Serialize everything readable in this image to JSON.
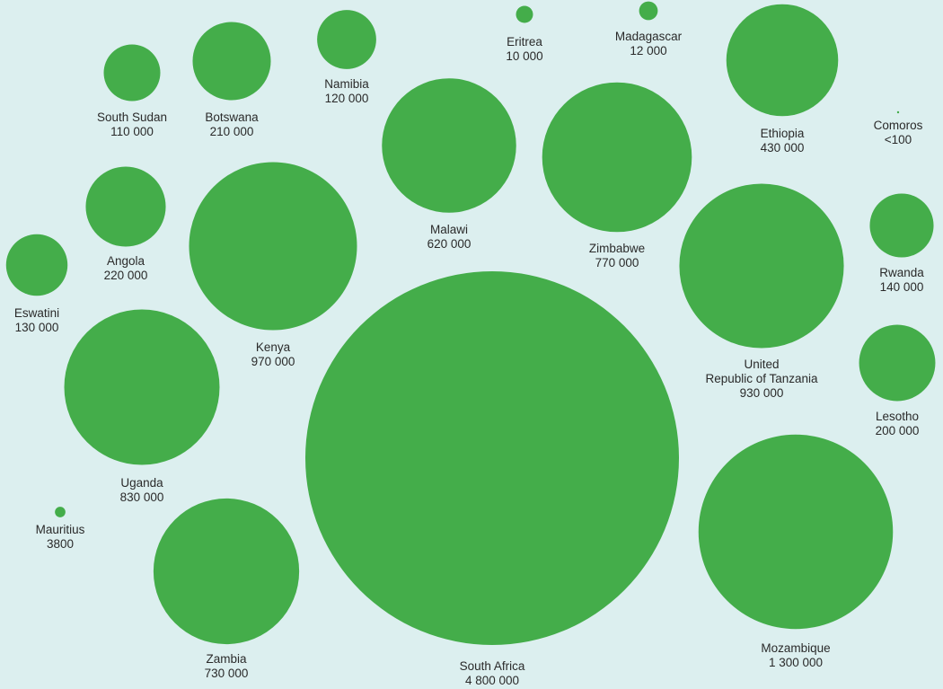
{
  "chart_data": {
    "type": "bubble",
    "title": "",
    "value_encoding": "circle area",
    "bubble_color": "#44ad4a",
    "background_color": "#dcefef",
    "label_color": "#2a2a2a",
    "series": [
      {
        "name": "South Sudan",
        "value": 110000,
        "value_label": "110 000"
      },
      {
        "name": "Botswana",
        "value": 210000,
        "value_label": "210 000"
      },
      {
        "name": "Namibia",
        "value": 120000,
        "value_label": "120 000"
      },
      {
        "name": "Eritrea",
        "value": 10000,
        "value_label": "10 000"
      },
      {
        "name": "Madagascar",
        "value": 12000,
        "value_label": "12 000"
      },
      {
        "name": "Ethiopia",
        "value": 430000,
        "value_label": "430 000"
      },
      {
        "name": "Comoros",
        "value": 100,
        "value_label": "<100"
      },
      {
        "name": "Angola",
        "value": 220000,
        "value_label": "220 000"
      },
      {
        "name": "Eswatini",
        "value": 130000,
        "value_label": "130 000"
      },
      {
        "name": "Kenya",
        "value": 970000,
        "value_label": "970 000"
      },
      {
        "name": "Malawi",
        "value": 620000,
        "value_label": "620 000"
      },
      {
        "name": "Zimbabwe",
        "value": 770000,
        "value_label": "770 000"
      },
      {
        "name": "United Republic of Tanzania",
        "label_lines": [
          "United",
          "Republic of Tanzania"
        ],
        "value": 930000,
        "value_label": "930 000"
      },
      {
        "name": "Rwanda",
        "value": 140000,
        "value_label": "140 000"
      },
      {
        "name": "Lesotho",
        "value": 200000,
        "value_label": "200 000"
      },
      {
        "name": "Uganda",
        "value": 830000,
        "value_label": "830 000"
      },
      {
        "name": "Mauritius",
        "value": 3800,
        "value_label": "3800"
      },
      {
        "name": "Zambia",
        "value": 730000,
        "value_label": "730 000"
      },
      {
        "name": "South Africa",
        "value": 4800000,
        "value_label": "4 800 000"
      },
      {
        "name": "Mozambique",
        "value": 1300000,
        "value_label": "1 300 000"
      }
    ]
  }
}
